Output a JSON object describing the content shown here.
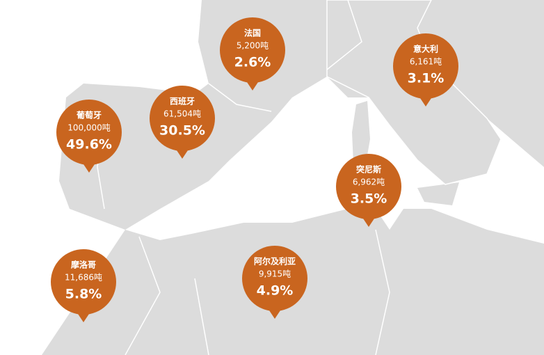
{
  "pins": [
    {
      "name": "法国",
      "amount": "5,200吨",
      "share": "2.6%"
    },
    {
      "name": "意大利",
      "amount": "6,161吨",
      "share": "3.1%"
    },
    {
      "name": "葡萄牙",
      "amount": "100,000吨",
      "share": "49.6%"
    },
    {
      "name": "西班牙",
      "amount": "61,504吨",
      "share": "30.5%"
    },
    {
      "name": "突尼斯",
      "amount": "6,962吨",
      "share": "3.5%"
    },
    {
      "name": "摩洛哥",
      "amount": "11,686吨",
      "share": "5.8%"
    },
    {
      "name": "阿尔及利亚",
      "amount": "9,915吨",
      "share": "4.9%"
    }
  ]
}
